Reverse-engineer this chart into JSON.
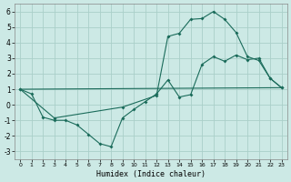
{
  "xlabel": "Humidex (Indice chaleur)",
  "xlim": [
    -0.5,
    23.5
  ],
  "ylim": [
    -3.5,
    6.5
  ],
  "yticks": [
    -3,
    -2,
    -1,
    0,
    1,
    2,
    3,
    4,
    5,
    6
  ],
  "xticks": [
    0,
    1,
    2,
    3,
    4,
    5,
    6,
    7,
    8,
    9,
    10,
    11,
    12,
    13,
    14,
    15,
    16,
    17,
    18,
    19,
    20,
    21,
    22,
    23
  ],
  "bg_color": "#cce9e5",
  "grid_color": "#aacfc9",
  "line_color": "#1a6b5a",
  "line1_x": [
    0,
    1,
    2,
    3,
    4,
    5,
    6,
    7,
    8,
    9,
    10,
    11,
    12,
    13,
    14,
    15,
    16,
    17,
    18,
    19,
    20,
    21,
    22,
    23
  ],
  "line1_y": [
    1.0,
    0.7,
    -0.8,
    -1.0,
    -1.0,
    -1.3,
    -1.9,
    -2.5,
    -2.7,
    -0.85,
    -0.3,
    0.2,
    0.7,
    1.6,
    0.5,
    0.65,
    2.6,
    3.1,
    2.8,
    3.2,
    2.9,
    3.0,
    1.7,
    1.1
  ],
  "line2_x": [
    0,
    3,
    9,
    12,
    13,
    14,
    15,
    16,
    17,
    18,
    19,
    20,
    21,
    22,
    23
  ],
  "line2_y": [
    1.0,
    -0.85,
    -0.15,
    0.6,
    4.4,
    4.6,
    5.5,
    5.55,
    6.0,
    5.5,
    4.65,
    3.1,
    2.85,
    1.7,
    1.1
  ],
  "line3_x": [
    0,
    23
  ],
  "line3_y": [
    1.0,
    1.1
  ]
}
